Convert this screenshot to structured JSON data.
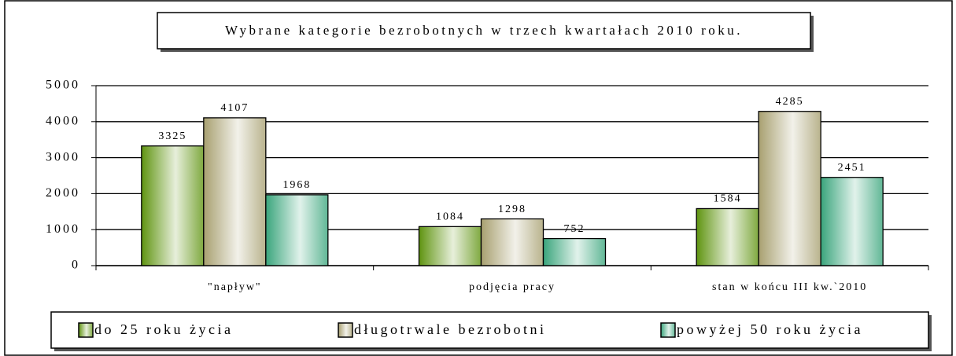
{
  "chart_data": {
    "type": "bar",
    "title": "Wybrane kategorie bezrobotnych w trzech kwartałach 2010 roku.",
    "categories": [
      "\"napływ\"",
      "podjęcia pracy",
      "stan w końcu III kw.`2010"
    ],
    "series": [
      {
        "name": "do 25 roku życia",
        "color": "#5f9410",
        "values": [
          3325,
          1084,
          1584
        ]
      },
      {
        "name": "długotrwale bezrobotni",
        "color": "#a8a070",
        "values": [
          4107,
          1298,
          4285
        ]
      },
      {
        "name": "powyżej 50 roku życia",
        "color": "#3aa57c",
        "values": [
          1968,
          752,
          2451
        ]
      }
    ],
    "ylim": [
      0,
      5000
    ],
    "yticks": [
      0,
      1000,
      2000,
      3000,
      4000,
      5000
    ],
    "grid": true,
    "legend": "bottom"
  }
}
